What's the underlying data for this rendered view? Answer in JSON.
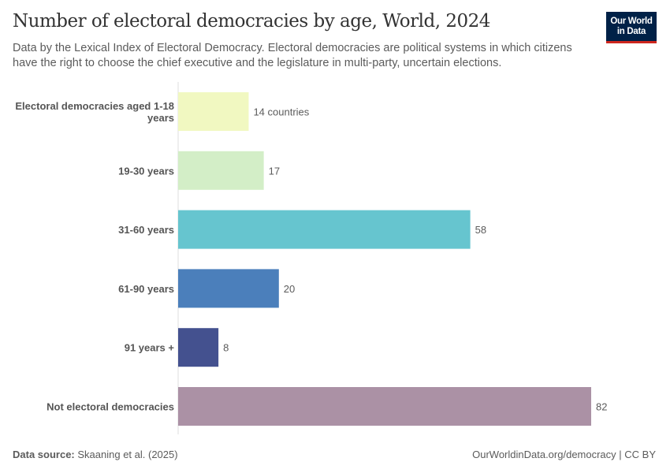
{
  "header": {
    "title": "Number of electoral democracies by age, World, 2024",
    "subtitle": "Data by the Lexical Index of Electoral Democracy. Electoral democracies are political systems in which citizens have the right to choose the chief executive and the legislature in multi-party, uncertain elections.",
    "logo": "Our World in Data"
  },
  "footer": {
    "source_label": "Data source:",
    "source": "Skaaning et al. (2025)",
    "license": "OurWorldinData.org/democracy | CC BY"
  },
  "chart_data": {
    "type": "bar",
    "orientation": "horizontal",
    "title": "Number of electoral democracies by age, World, 2024",
    "categories": [
      "Electoral democracies aged 1-18 years",
      "19-30 years",
      "31-60 years",
      "61-90 years",
      "91 years +",
      "Not electoral democracies"
    ],
    "values": [
      14,
      17,
      58,
      20,
      8,
      82
    ],
    "value_labels": [
      "14 countries",
      "17",
      "58",
      "20",
      "8",
      "82"
    ],
    "colors": [
      "#f1f8c1",
      "#d3eec7",
      "#66c5cf",
      "#4b7fbb",
      "#44518f",
      "#ab91a5"
    ],
    "xlim": [
      0,
      82
    ],
    "grid": false
  }
}
